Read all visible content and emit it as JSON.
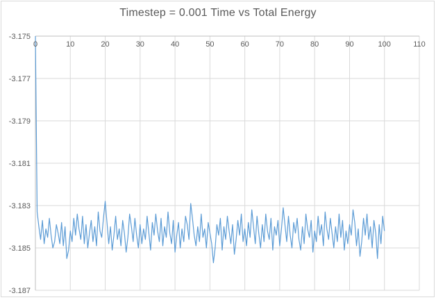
{
  "chart_data": {
    "type": "line",
    "title": "Timestep = 0.001 Time vs Total Energy",
    "xlabel": "",
    "ylabel": "",
    "xlim": [
      0,
      110
    ],
    "ylim": [
      -3.187,
      -3.175
    ],
    "x_ticks": [
      0,
      10,
      20,
      30,
      40,
      50,
      60,
      70,
      80,
      90,
      100,
      110
    ],
    "y_ticks": [
      -3.175,
      -3.177,
      -3.179,
      -3.181,
      -3.183,
      -3.185,
      -3.187
    ],
    "y_tick_labels": [
      "-3.175",
      "-3.177",
      "-3.179",
      "-3.181",
      "-3.183",
      "-3.185",
      "-3.187"
    ],
    "grid": true,
    "legend": false,
    "x_axis_position": "top",
    "colors": {
      "line": "#5B9BD5",
      "gridline": "#D9D9D9",
      "axis": "#BFBFBF",
      "text": "#595959",
      "border": "#D9D9D9"
    },
    "series": [
      {
        "name": "Total Energy",
        "x_start": 0,
        "x_step": 0.5,
        "x_end": 100,
        "y_mean": -3.1842,
        "y_unit": 0.0001,
        "value_rule": "y = y_mean + offset * y_unit; x = x_start + index * x_step",
        "offsets": [
          92,
          9,
          2,
          -4,
          5,
          -6,
          1,
          -3,
          6,
          -2,
          -8,
          -5,
          3,
          -1,
          -6,
          4,
          -7,
          2,
          -13,
          -9,
          0,
          -5,
          6,
          -2,
          8,
          1,
          -4,
          7,
          -6,
          3,
          -8,
          -1,
          5,
          -5,
          2,
          -7,
          9,
          0,
          -3,
          6,
          14,
          4,
          -6,
          2,
          -9,
          -2,
          7,
          -4,
          1,
          -7,
          5,
          -1,
          -10,
          -3,
          8,
          2,
          -5,
          6,
          -2,
          -8,
          3,
          -6,
          1,
          -4,
          7,
          -1,
          -9,
          4,
          -2,
          8,
          0,
          -5,
          6,
          -7,
          2,
          -3,
          9,
          -1,
          -6,
          5,
          -10,
          -2,
          4,
          -8,
          1,
          -5,
          7,
          3,
          -4,
          13,
          6,
          -2,
          -7,
          2,
          -5,
          8,
          -3,
          1,
          -8,
          4,
          -1,
          -6,
          -15,
          -8,
          3,
          -2,
          6,
          -9,
          2,
          -4,
          7,
          0,
          -6,
          3,
          -11,
          -4,
          5,
          -2,
          8,
          -5,
          1,
          -7,
          4,
          -3,
          10,
          2,
          -6,
          7,
          -1,
          -8,
          3,
          -5,
          8,
          0,
          -4,
          6,
          -9,
          2,
          -2,
          5,
          -7,
          1,
          11,
          3,
          -5,
          7,
          -2,
          -8,
          4,
          -1,
          6,
          -4,
          -9,
          2,
          -6,
          8,
          1,
          -3,
          5,
          -10,
          0,
          -5,
          7,
          -2,
          3,
          -7,
          9,
          1,
          -4,
          6,
          -1,
          -8,
          2,
          -5,
          8,
          -3,
          5,
          -9,
          0,
          -6,
          3,
          -2,
          10,
          4,
          -7,
          1,
          -12,
          -5,
          6,
          -2,
          8,
          -4,
          2,
          -8,
          5,
          -1,
          -13,
          3,
          -6,
          7,
          0
        ]
      }
    ]
  }
}
